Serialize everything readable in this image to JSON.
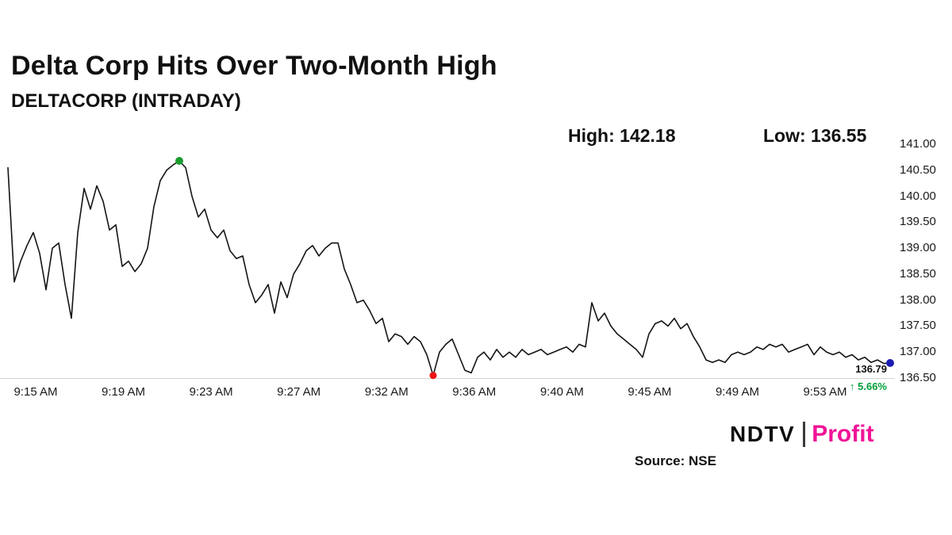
{
  "header": {
    "title": "Delta Corp Hits Over Two-Month High",
    "subtitle": "DELTACORP (INTRADAY)",
    "high_label": "High: 142.18",
    "low_label": "Low: 136.55"
  },
  "chart_data": {
    "type": "line",
    "title": "Delta Corp Hits Over Two-Month High",
    "subtitle": "DELTACORP (INTRADAY)",
    "series_name": "DELTACORP intraday price",
    "x_ticks": [
      "9:15 AM",
      "9:19 AM",
      "9:23 AM",
      "9:27 AM",
      "9:32 AM",
      "9:36 AM",
      "9:40 AM",
      "9:45 AM",
      "9:49 AM",
      "9:53 AM"
    ],
    "y_ticks": [
      "141.00",
      "140.50",
      "140.00",
      "139.50",
      "139.00",
      "138.50",
      "138.00",
      "137.50",
      "137.00",
      "136.50"
    ],
    "ylim": [
      136.5,
      141.0
    ],
    "high": 142.18,
    "low": 136.55,
    "grid": false,
    "legend": "none",
    "line_color": "#141414",
    "axis_color": "#d4d4d4",
    "values": [
      140.55,
      138.35,
      138.75,
      139.05,
      139.3,
      138.9,
      138.2,
      139.0,
      139.1,
      138.3,
      137.65,
      139.3,
      140.15,
      139.75,
      140.2,
      139.9,
      139.35,
      139.45,
      138.65,
      138.75,
      138.55,
      138.7,
      139.0,
      139.8,
      140.3,
      140.5,
      140.6,
      140.68,
      140.55,
      140.0,
      139.6,
      139.75,
      139.35,
      139.2,
      139.35,
      138.95,
      138.8,
      138.85,
      138.3,
      137.95,
      138.1,
      138.3,
      137.75,
      138.35,
      138.05,
      138.5,
      138.7,
      138.95,
      139.05,
      138.85,
      139.0,
      139.1,
      139.1,
      138.6,
      138.3,
      137.95,
      138.0,
      137.8,
      137.55,
      137.65,
      137.2,
      137.35,
      137.3,
      137.15,
      137.3,
      137.2,
      136.95,
      136.55,
      137.0,
      137.15,
      137.25,
      136.95,
      136.65,
      136.6,
      136.9,
      137.0,
      136.85,
      137.05,
      136.9,
      137.0,
      136.9,
      137.05,
      136.95,
      137.0,
      137.05,
      136.95,
      137.0,
      137.05,
      137.1,
      137.0,
      137.15,
      137.1,
      137.95,
      137.6,
      137.75,
      137.5,
      137.35,
      137.25,
      137.15,
      137.05,
      136.9,
      137.35,
      137.55,
      137.6,
      137.5,
      137.65,
      137.45,
      137.55,
      137.3,
      137.1,
      136.85,
      136.8,
      136.85,
      136.8,
      136.95,
      137.0,
      136.95,
      137.0,
      137.1,
      137.05,
      137.15,
      137.1,
      137.15,
      137.0,
      137.05,
      137.1,
      137.15,
      136.95,
      137.1,
      137.0,
      136.95,
      137.0,
      136.9,
      136.95,
      136.85,
      136.9,
      136.8,
      136.85,
      136.78,
      136.79
    ],
    "markers": {
      "high": {
        "index": 27,
        "value": 140.68,
        "color": "#1a9c2f"
      },
      "low": {
        "index": 67,
        "value": 136.55,
        "color": "#ee1414"
      },
      "last": {
        "index": 139,
        "value": 136.79,
        "color": "#1c1cb4"
      }
    },
    "last_point": {
      "price": "136.79",
      "change": "↑ 5.66%",
      "change_color": "#00a03a"
    }
  },
  "footer": {
    "source": "Source: NSE",
    "logo_ndtv": "NDTV",
    "logo_profit": "Profit",
    "profit_color": "#ef1497"
  }
}
